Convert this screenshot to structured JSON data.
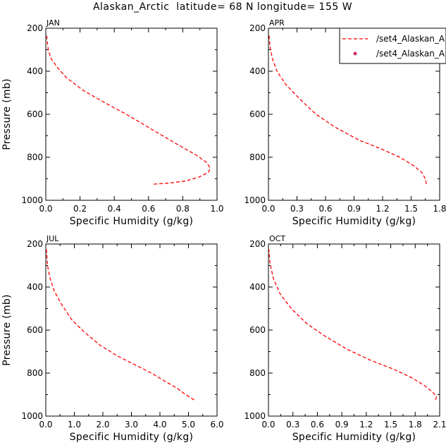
{
  "figure": {
    "title": "Alaskan_Arctic  latitude= 68 N longitude= 155 W"
  },
  "legend": {
    "entries": [
      {
        "label": "/set4_Alaskan_A",
        "style": "dashed-line",
        "color": "#ff0000"
      },
      {
        "label": "/set4_Alaskan_A",
        "style": "marker",
        "color": "#d0306a"
      }
    ]
  },
  "chart_data": [
    {
      "type": "line",
      "panel_label": "JAN",
      "xlabel": "Specific Humidity (g/kg)",
      "ylabel": "Pressure (mb)",
      "xlim": [
        0,
        1.0
      ],
      "ylim": [
        200,
        1000
      ],
      "y_inverted": true,
      "xticks": [
        0,
        0.2,
        0.4,
        0.6,
        0.8,
        1.0
      ],
      "xtick_labels": [
        "0.0",
        "0.2",
        "0.4",
        "0.6",
        "0.8",
        "1.0"
      ],
      "yticks": [
        200,
        400,
        600,
        800,
        1000
      ],
      "ytick_labels": [
        "200",
        "400",
        "600",
        "800",
        "1000"
      ],
      "series": [
        {
          "color": "#ff0000",
          "style": "dashed",
          "x": [
            0.63,
            0.72,
            0.82,
            0.9,
            0.95,
            0.96,
            0.94,
            0.88,
            0.79,
            0.64,
            0.47,
            0.33,
            0.22,
            0.12,
            0.07,
            0.03,
            0.015,
            0.007,
            0.005
          ],
          "y": [
            925,
            920,
            910,
            890,
            870,
            850,
            825,
            790,
            750,
            680,
            600,
            540,
            490,
            430,
            385,
            340,
            300,
            255,
            225
          ]
        }
      ]
    },
    {
      "type": "line",
      "panel_label": "APR",
      "xlabel": "Specific Humidity (g/kg)",
      "ylabel": "",
      "xlim": [
        0,
        1.8
      ],
      "ylim": [
        200,
        1000
      ],
      "y_inverted": true,
      "xticks": [
        0,
        0.3,
        0.6,
        0.9,
        1.2,
        1.5,
        1.8
      ],
      "xtick_labels": [
        "0.0",
        "0.3",
        "0.6",
        "0.9",
        "1.2",
        "1.5",
        "1.8"
      ],
      "yticks": [
        200,
        400,
        600,
        800,
        1000
      ],
      "ytick_labels": [
        "200",
        "400",
        "600",
        "800",
        "1000"
      ],
      "series": [
        {
          "color": "#ff0000",
          "style": "dashed",
          "x": [
            1.66,
            1.65,
            1.61,
            1.53,
            1.38,
            1.18,
            0.95,
            0.7,
            0.5,
            0.33,
            0.18,
            0.09,
            0.04,
            0.015,
            0.005
          ],
          "y": [
            925,
            900,
            870,
            840,
            800,
            760,
            720,
            660,
            600,
            530,
            460,
            400,
            340,
            280,
            225
          ]
        }
      ]
    },
    {
      "type": "line",
      "panel_label": "JUL",
      "xlabel": "Specific Humidity (g/kg)",
      "ylabel": "Pressure (mb)",
      "xlim": [
        0,
        6.0
      ],
      "ylim": [
        200,
        1000
      ],
      "y_inverted": true,
      "xticks": [
        0,
        1,
        2,
        3,
        4,
        5,
        6
      ],
      "xtick_labels": [
        "0.0",
        "1.0",
        "2.0",
        "3.0",
        "4.0",
        "5.0",
        "6.0"
      ],
      "yticks": [
        200,
        400,
        600,
        800,
        1000
      ],
      "ytick_labels": [
        "200",
        "400",
        "600",
        "800",
        "1000"
      ],
      "series": [
        {
          "color": "#ff0000",
          "style": "dashed",
          "x": [
            5.2,
            4.9,
            4.6,
            4.2,
            3.7,
            3.1,
            2.5,
            1.9,
            1.35,
            0.9,
            0.55,
            0.3,
            0.15,
            0.06,
            0.02
          ],
          "y": [
            925,
            900,
            870,
            840,
            800,
            760,
            720,
            670,
            610,
            550,
            480,
            420,
            360,
            300,
            225
          ]
        }
      ]
    },
    {
      "type": "line",
      "panel_label": "OCT",
      "xlabel": "Specific Humidity (g/kg)",
      "ylabel": "",
      "xlim": [
        0,
        2.1
      ],
      "ylim": [
        200,
        1000
      ],
      "y_inverted": true,
      "xticks": [
        0,
        0.3,
        0.6,
        0.9,
        1.2,
        1.5,
        1.8,
        2.1
      ],
      "xtick_labels": [
        "0.0",
        "0.3",
        "0.6",
        "0.9",
        "1.2",
        "1.5",
        "1.8",
        "2.1"
      ],
      "yticks": [
        200,
        400,
        600,
        800,
        1000
      ],
      "ytick_labels": [
        "200",
        "400",
        "600",
        "800",
        "1000"
      ],
      "series": [
        {
          "color": "#ff0000",
          "style": "dashed",
          "x": [
            2.05,
            2.06,
            2.02,
            1.92,
            1.75,
            1.52,
            1.25,
            0.97,
            0.7,
            0.47,
            0.28,
            0.14,
            0.06,
            0.02,
            0.005
          ],
          "y": [
            925,
            910,
            890,
            860,
            820,
            780,
            740,
            690,
            630,
            570,
            500,
            430,
            360,
            290,
            225
          ]
        }
      ]
    }
  ]
}
